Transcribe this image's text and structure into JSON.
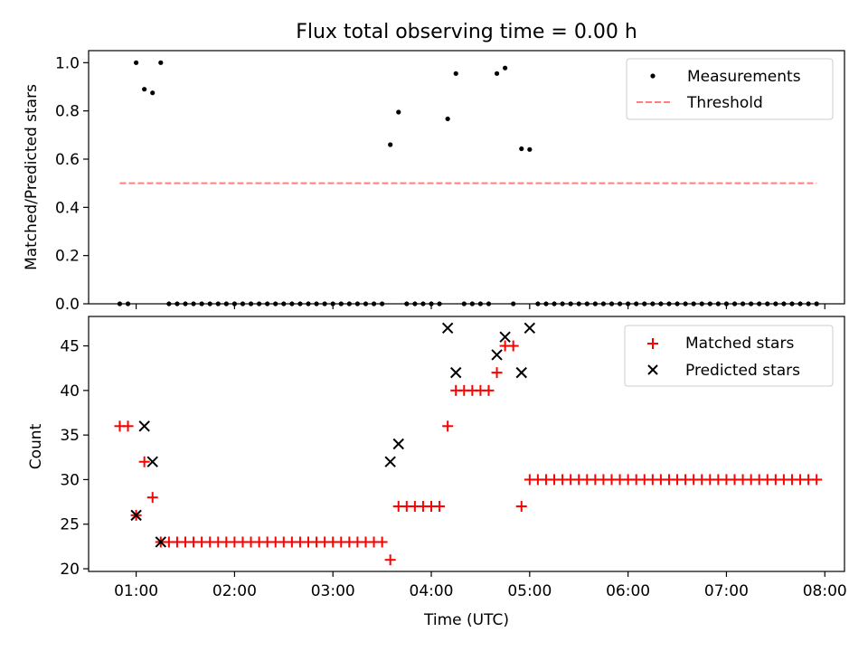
{
  "chart_data": [
    {
      "type": "scatter",
      "title": "Flux total observing time = 0.00 h",
      "ylabel": "Matched/Predicted stars",
      "xlabel": "",
      "xlim": [
        "00:31",
        "08:12"
      ],
      "ylim": [
        0,
        1.05
      ],
      "yticks": [
        0.0,
        0.2,
        0.4,
        0.6,
        0.8,
        1.0
      ],
      "ytick_labels": [
        "0.0",
        "0.2",
        "0.4",
        "0.6",
        "0.8",
        "1.0"
      ],
      "legend": {
        "position": "top-right",
        "entries": [
          "Measurements",
          "Threshold"
        ]
      },
      "series": [
        {
          "name": "Measurements",
          "marker": "dot",
          "color": "#000000",
          "points": [
            [
              "00:50",
              0.0
            ],
            [
              "00:55",
              0.0
            ],
            [
              "01:00",
              1.0
            ],
            [
              "01:05",
              0.89
            ],
            [
              "01:10",
              0.875
            ],
            [
              "01:15",
              1.0
            ],
            [
              "01:20",
              0.0
            ],
            [
              "01:25",
              0.0
            ],
            [
              "01:30",
              0.0
            ],
            [
              "01:35",
              0.0
            ],
            [
              "01:40",
              0.0
            ],
            [
              "01:45",
              0.0
            ],
            [
              "01:50",
              0.0
            ],
            [
              "01:55",
              0.0
            ],
            [
              "02:00",
              0.0
            ],
            [
              "02:05",
              0.0
            ],
            [
              "02:10",
              0.0
            ],
            [
              "02:15",
              0.0
            ],
            [
              "02:20",
              0.0
            ],
            [
              "02:25",
              0.0
            ],
            [
              "02:30",
              0.0
            ],
            [
              "02:35",
              0.0
            ],
            [
              "02:40",
              0.0
            ],
            [
              "02:45",
              0.0
            ],
            [
              "02:50",
              0.0
            ],
            [
              "02:55",
              0.0
            ],
            [
              "03:00",
              0.0
            ],
            [
              "03:05",
              0.0
            ],
            [
              "03:10",
              0.0
            ],
            [
              "03:15",
              0.0
            ],
            [
              "03:20",
              0.0
            ],
            [
              "03:25",
              0.0
            ],
            [
              "03:30",
              0.0
            ],
            [
              "03:35",
              0.66
            ],
            [
              "03:40",
              0.795
            ],
            [
              "03:45",
              0.0
            ],
            [
              "03:50",
              0.0
            ],
            [
              "03:55",
              0.0
            ],
            [
              "04:00",
              0.0
            ],
            [
              "04:05",
              0.0
            ],
            [
              "04:10",
              0.767
            ],
            [
              "04:15",
              0.955
            ],
            [
              "04:20",
              0.0
            ],
            [
              "04:25",
              0.0
            ],
            [
              "04:30",
              0.0
            ],
            [
              "04:35",
              0.0
            ],
            [
              "04:40",
              0.955
            ],
            [
              "04:45",
              0.978
            ],
            [
              "04:50",
              0.0
            ],
            [
              "04:55",
              0.643
            ],
            [
              "05:00",
              0.64
            ],
            [
              "05:05",
              0.0
            ],
            [
              "05:10",
              0.0
            ],
            [
              "05:15",
              0.0
            ],
            [
              "05:20",
              0.0
            ],
            [
              "05:25",
              0.0
            ],
            [
              "05:30",
              0.0
            ],
            [
              "05:35",
              0.0
            ],
            [
              "05:40",
              0.0
            ],
            [
              "05:45",
              0.0
            ],
            [
              "05:50",
              0.0
            ],
            [
              "05:55",
              0.0
            ],
            [
              "06:00",
              0.0
            ],
            [
              "06:05",
              0.0
            ],
            [
              "06:10",
              0.0
            ],
            [
              "06:15",
              0.0
            ],
            [
              "06:20",
              0.0
            ],
            [
              "06:25",
              0.0
            ],
            [
              "06:30",
              0.0
            ],
            [
              "06:35",
              0.0
            ],
            [
              "06:40",
              0.0
            ],
            [
              "06:45",
              0.0
            ],
            [
              "06:50",
              0.0
            ],
            [
              "06:55",
              0.0
            ],
            [
              "07:00",
              0.0
            ],
            [
              "07:05",
              0.0
            ],
            [
              "07:10",
              0.0
            ],
            [
              "07:15",
              0.0
            ],
            [
              "07:20",
              0.0
            ],
            [
              "07:25",
              0.0
            ],
            [
              "07:30",
              0.0
            ],
            [
              "07:35",
              0.0
            ],
            [
              "07:40",
              0.0
            ],
            [
              "07:45",
              0.0
            ],
            [
              "07:50",
              0.0
            ],
            [
              "07:55",
              0.0
            ]
          ]
        },
        {
          "name": "Threshold",
          "type": "line",
          "style": "dashed",
          "color": "#ff7f7f",
          "points": [
            [
              "00:50",
              0.5
            ],
            [
              "07:55",
              0.5
            ]
          ]
        }
      ]
    },
    {
      "type": "scatter",
      "title": "",
      "xlabel": "Time (UTC)",
      "ylabel": "Count",
      "xlim": [
        "00:31",
        "08:12"
      ],
      "ylim": [
        19.7,
        48.3
      ],
      "xticks": [
        "01:00",
        "02:00",
        "03:00",
        "04:00",
        "05:00",
        "06:00",
        "07:00",
        "08:00"
      ],
      "yticks": [
        20,
        25,
        30,
        35,
        40,
        45
      ],
      "ytick_labels": [
        "20",
        "25",
        "30",
        "35",
        "40",
        "45"
      ],
      "legend": {
        "position": "top-right",
        "entries": [
          "Matched stars",
          "Predicted stars"
        ]
      },
      "series": [
        {
          "name": "Matched stars",
          "marker": "plus",
          "color": "#ff0000",
          "points": [
            [
              "00:50",
              36
            ],
            [
              "00:55",
              36
            ],
            [
              "01:00",
              26
            ],
            [
              "01:05",
              32
            ],
            [
              "01:10",
              28
            ],
            [
              "01:15",
              23
            ],
            [
              "01:20",
              23
            ],
            [
              "01:25",
              23
            ],
            [
              "01:30",
              23
            ],
            [
              "01:35",
              23
            ],
            [
              "01:40",
              23
            ],
            [
              "01:45",
              23
            ],
            [
              "01:50",
              23
            ],
            [
              "01:55",
              23
            ],
            [
              "02:00",
              23
            ],
            [
              "02:05",
              23
            ],
            [
              "02:10",
              23
            ],
            [
              "02:15",
              23
            ],
            [
              "02:20",
              23
            ],
            [
              "02:25",
              23
            ],
            [
              "02:30",
              23
            ],
            [
              "02:35",
              23
            ],
            [
              "02:40",
              23
            ],
            [
              "02:45",
              23
            ],
            [
              "02:50",
              23
            ],
            [
              "02:55",
              23
            ],
            [
              "03:00",
              23
            ],
            [
              "03:05",
              23
            ],
            [
              "03:10",
              23
            ],
            [
              "03:15",
              23
            ],
            [
              "03:20",
              23
            ],
            [
              "03:25",
              23
            ],
            [
              "03:30",
              23
            ],
            [
              "03:35",
              21
            ],
            [
              "03:40",
              27
            ],
            [
              "03:45",
              27
            ],
            [
              "03:50",
              27
            ],
            [
              "03:55",
              27
            ],
            [
              "04:00",
              27
            ],
            [
              "04:05",
              27
            ],
            [
              "04:10",
              36
            ],
            [
              "04:15",
              40
            ],
            [
              "04:20",
              40
            ],
            [
              "04:25",
              40
            ],
            [
              "04:30",
              40
            ],
            [
              "04:35",
              40
            ],
            [
              "04:40",
              42
            ],
            [
              "04:45",
              45
            ],
            [
              "04:50",
              45
            ],
            [
              "04:55",
              27
            ],
            [
              "05:00",
              30
            ],
            [
              "05:05",
              30
            ],
            [
              "05:10",
              30
            ],
            [
              "05:15",
              30
            ],
            [
              "05:20",
              30
            ],
            [
              "05:25",
              30
            ],
            [
              "05:30",
              30
            ],
            [
              "05:35",
              30
            ],
            [
              "05:40",
              30
            ],
            [
              "05:45",
              30
            ],
            [
              "05:50",
              30
            ],
            [
              "05:55",
              30
            ],
            [
              "06:00",
              30
            ],
            [
              "06:05",
              30
            ],
            [
              "06:10",
              30
            ],
            [
              "06:15",
              30
            ],
            [
              "06:20",
              30
            ],
            [
              "06:25",
              30
            ],
            [
              "06:30",
              30
            ],
            [
              "06:35",
              30
            ],
            [
              "06:40",
              30
            ],
            [
              "06:45",
              30
            ],
            [
              "06:50",
              30
            ],
            [
              "06:55",
              30
            ],
            [
              "07:00",
              30
            ],
            [
              "07:05",
              30
            ],
            [
              "07:10",
              30
            ],
            [
              "07:15",
              30
            ],
            [
              "07:20",
              30
            ],
            [
              "07:25",
              30
            ],
            [
              "07:30",
              30
            ],
            [
              "07:35",
              30
            ],
            [
              "07:40",
              30
            ],
            [
              "07:45",
              30
            ],
            [
              "07:50",
              30
            ],
            [
              "07:55",
              30
            ]
          ]
        },
        {
          "name": "Predicted stars",
          "marker": "x",
          "color": "#000000",
          "points": [
            [
              "01:00",
              26
            ],
            [
              "01:05",
              36
            ],
            [
              "01:10",
              32
            ],
            [
              "01:15",
              23
            ],
            [
              "03:35",
              32
            ],
            [
              "03:40",
              34
            ],
            [
              "04:10",
              47
            ],
            [
              "04:15",
              42
            ],
            [
              "04:40",
              44
            ],
            [
              "04:45",
              46
            ],
            [
              "04:55",
              42
            ],
            [
              "05:00",
              47
            ]
          ]
        }
      ]
    }
  ]
}
